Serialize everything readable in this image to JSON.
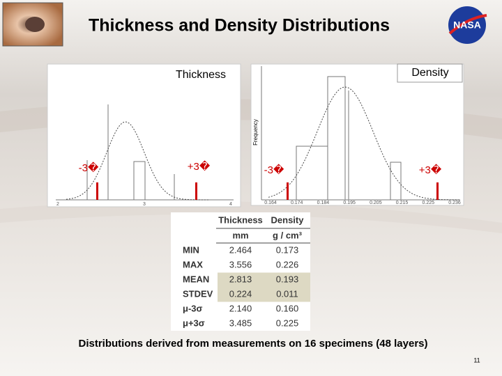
{
  "header": {
    "title": "Thickness and Density Distributions",
    "logo": "NASA"
  },
  "figures": [
    {
      "label": "Thickness",
      "lower": "-3�",
      "upper": "+3�",
      "x_ticks": [
        "2",
        "3",
        "4"
      ]
    },
    {
      "label": "Density",
      "y_label": "Frequency",
      "lower": "-3�",
      "upper": "+3�",
      "x_ticks": [
        "0.164",
        "0.174",
        "0.184",
        "0.195",
        "0.205",
        "0.215",
        "0.225",
        "0.236"
      ]
    }
  ],
  "table": {
    "columns": [
      "Thickness",
      "Density"
    ],
    "units": [
      "mm",
      "g / cm³"
    ],
    "rows": [
      [
        "MIN",
        "2.464",
        "0.173"
      ],
      [
        "MAX",
        "3.556",
        "0.226"
      ],
      [
        "MEAN",
        "2.813",
        "0.193"
      ],
      [
        "STDEV",
        "0.224",
        "0.011"
      ],
      [
        "μ-3σ",
        "2.140",
        "0.160"
      ],
      [
        "μ+3σ",
        "3.485",
        "0.225"
      ]
    ]
  },
  "caption": "Distributions derived from measurements on 16 specimens (48 layers)",
  "page_number": "11"
}
